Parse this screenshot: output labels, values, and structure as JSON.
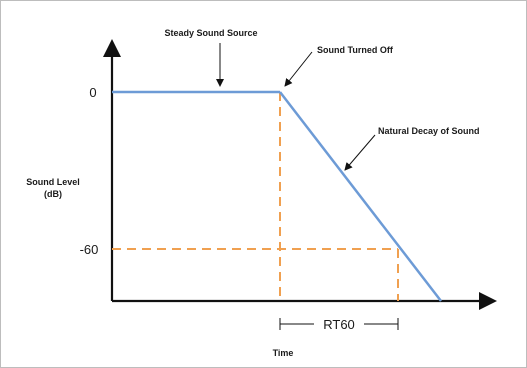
{
  "diagram": {
    "y_axis_label_line1": "Sound Level",
    "y_axis_label_line2": "(dB)",
    "x_axis_label": "Time",
    "tick_zero": "0",
    "tick_minus60": "-60",
    "steady_label": "Steady Sound Source",
    "turned_off_label": "Sound Turned Off",
    "decay_label": "Natural Decay of Sound",
    "rt60_label": "RT60"
  },
  "colors": {
    "signal_line": "#6d9bd6",
    "guide_dash": "#f0a050",
    "axis": "#111111",
    "text": "#1a1a1a"
  }
}
